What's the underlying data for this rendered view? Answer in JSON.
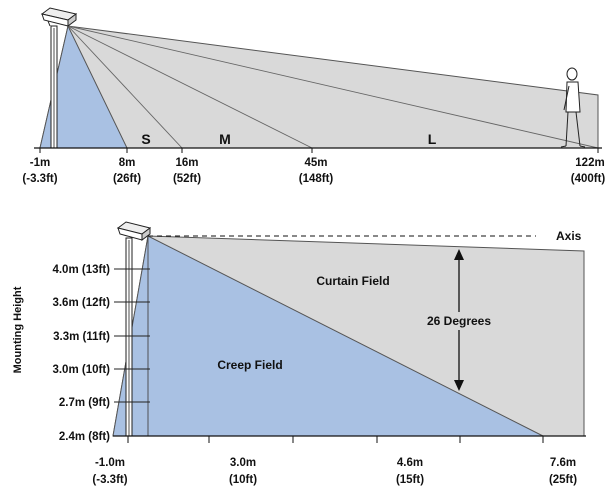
{
  "colors": {
    "gray_fill": "#d9d9d9",
    "blue_fill": "#a9c1e3",
    "outline": "#555555",
    "line": "#111111"
  },
  "top": {
    "zones": [
      "S",
      "M",
      "L"
    ],
    "ticks": [
      {
        "meters": "-1m",
        "feet": "(-3.3ft)"
      },
      {
        "meters": "8m",
        "feet": "(26ft)"
      },
      {
        "meters": "16m",
        "feet": "(52ft)"
      },
      {
        "meters": "45m",
        "feet": "(148ft)"
      },
      {
        "meters": "122m",
        "feet": "(400ft)"
      }
    ]
  },
  "bottom": {
    "axis_label": "Axis",
    "curtain_label": "Curtain Field",
    "creep_label": "Creep Field",
    "angle_label": "26 Degrees",
    "mounting_label": "Mounting Height",
    "heights": [
      "4.0m (13ft)",
      "3.6m (12ft)",
      "3.3m (11ft)",
      "3.0m (10ft)",
      "2.7m (9ft)",
      "2.4m (8ft)"
    ],
    "ticks": [
      {
        "meters": "-1.0m",
        "feet": "(-3.3ft)"
      },
      {
        "meters": "3.0m",
        "feet": "(10ft)"
      },
      {
        "meters": "4.6m",
        "feet": "(15ft)"
      },
      {
        "meters": "7.6m",
        "feet": "(25ft)"
      }
    ]
  }
}
